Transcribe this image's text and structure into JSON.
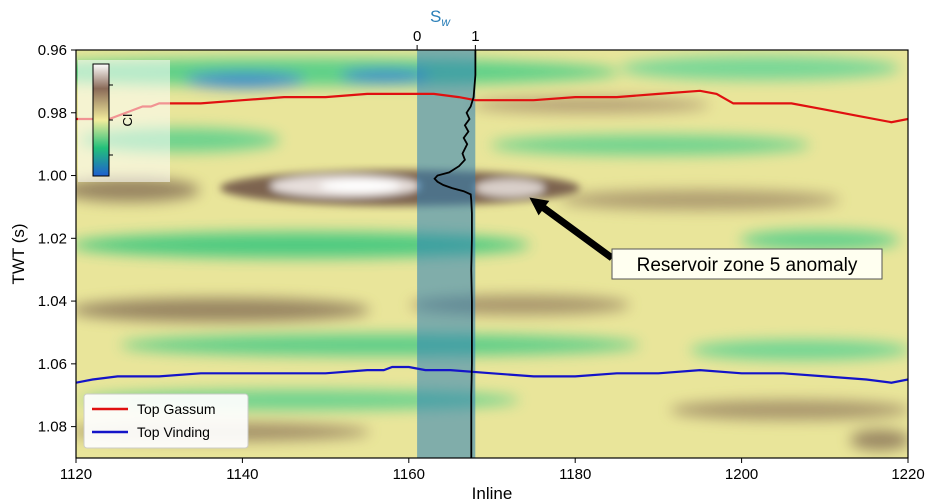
{
  "chart_data": {
    "type": "heatmap",
    "title": "",
    "xlabel": "Inline",
    "ylabel": "TWT (s)",
    "xlim": [
      1120,
      1220
    ],
    "ylim": [
      1.09,
      0.96
    ],
    "x_ticks": [
      "1120",
      "1140",
      "1160",
      "1180",
      "1200",
      "1220"
    ],
    "y_ticks": [
      "0.96",
      "0.98",
      "1.00",
      "1.02",
      "1.04",
      "1.06",
      "1.08"
    ],
    "y_tick_values": [
      0.96,
      0.98,
      1.0,
      1.02,
      1.04,
      1.06,
      1.08
    ],
    "x_tick_values": [
      1120,
      1140,
      1160,
      1180,
      1200,
      1220
    ],
    "colorbar_label": "CI",
    "colormap": [
      "#1f5fd0",
      "#22c07a",
      "#f2ec9c",
      "#8a6a58",
      "#ffffff"
    ],
    "sw_axis": {
      "label_base": "S",
      "label_sub": "w",
      "ticks": [
        "0",
        "1"
      ],
      "tick_values": [
        0,
        1
      ],
      "x_start": 1161.0,
      "x_end": 1168.0,
      "color": "#2a7fb8"
    },
    "annotation": {
      "text": "Reservoir zone 5 anomaly",
      "arrow_to": [
        1174.5,
        1.007
      ],
      "box_at": [
        1186.5,
        1.028
      ]
    },
    "series": [
      {
        "name": "Top Gassum",
        "color": "#e01010",
        "x": [
          1120,
          1122,
          1124,
          1125,
          1126,
          1127,
          1128,
          1129,
          1130,
          1131,
          1132,
          1135,
          1140,
          1145,
          1150,
          1155,
          1160,
          1163,
          1166,
          1168,
          1170,
          1175,
          1180,
          1185,
          1190,
          1195,
          1197,
          1199,
          1202,
          1206,
          1210,
          1214,
          1218,
          1220
        ],
        "values": [
          0.982,
          0.982,
          0.982,
          0.981,
          0.98,
          0.979,
          0.978,
          0.978,
          0.977,
          0.977,
          0.977,
          0.977,
          0.976,
          0.975,
          0.975,
          0.974,
          0.974,
          0.974,
          0.975,
          0.976,
          0.976,
          0.976,
          0.975,
          0.975,
          0.974,
          0.973,
          0.974,
          0.977,
          0.977,
          0.977,
          0.979,
          0.981,
          0.983,
          0.982
        ]
      },
      {
        "name": "Top Vinding",
        "color": "#1414c8",
        "x": [
          1120,
          1122,
          1125,
          1130,
          1135,
          1140,
          1145,
          1150,
          1155,
          1157,
          1158,
          1160,
          1162,
          1165,
          1170,
          1175,
          1180,
          1185,
          1190,
          1195,
          1200,
          1205,
          1210,
          1215,
          1218,
          1220
        ],
        "values": [
          1.066,
          1.065,
          1.064,
          1.064,
          1.063,
          1.063,
          1.063,
          1.063,
          1.062,
          1.062,
          1.061,
          1.061,
          1.062,
          1.062,
          1.063,
          1.064,
          1.064,
          1.063,
          1.063,
          1.062,
          1.063,
          1.063,
          1.064,
          1.065,
          1.066,
          1.065
        ]
      }
    ],
    "sw_log": {
      "name": "Sw",
      "color": "#000000",
      "twt": [
        0.96,
        0.968,
        0.975,
        0.978,
        0.98,
        0.982,
        0.984,
        0.986,
        0.988,
        0.99,
        0.993,
        0.995,
        0.997,
        0.999,
        1.0,
        1.001,
        1.002,
        1.003,
        1.004,
        1.005,
        1.006,
        1.008,
        1.012,
        1.02,
        1.03,
        1.04,
        1.05,
        1.06,
        1.07,
        1.08,
        1.09
      ],
      "sw": [
        1.0,
        1.0,
        0.97,
        0.92,
        0.85,
        0.9,
        0.82,
        0.88,
        0.8,
        0.86,
        0.78,
        0.82,
        0.72,
        0.55,
        0.35,
        0.3,
        0.35,
        0.45,
        0.6,
        0.8,
        0.92,
        0.93,
        0.94,
        0.94,
        0.93,
        0.94,
        0.94,
        0.94,
        0.93,
        0.93,
        0.93
      ]
    },
    "legend": {
      "placement": "lower-left"
    }
  }
}
